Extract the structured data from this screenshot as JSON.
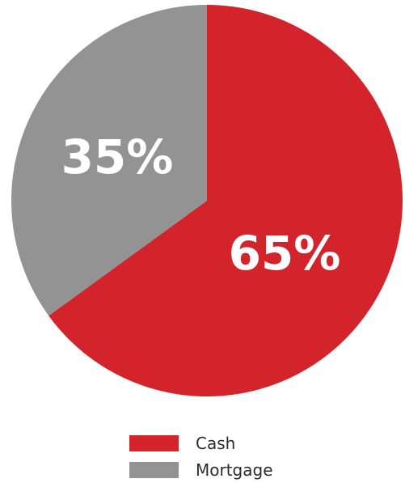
{
  "chart_data": {
    "type": "pie",
    "title": "",
    "slices": [
      {
        "label": "Cash",
        "value": 65,
        "display": "65%",
        "color": "#D2242A"
      },
      {
        "label": "Mortgage",
        "value": 35,
        "display": "35%",
        "color": "#939393"
      }
    ],
    "legend_position": "bottom-center",
    "start_angle_note": "clockwise from 12 o'clock"
  }
}
